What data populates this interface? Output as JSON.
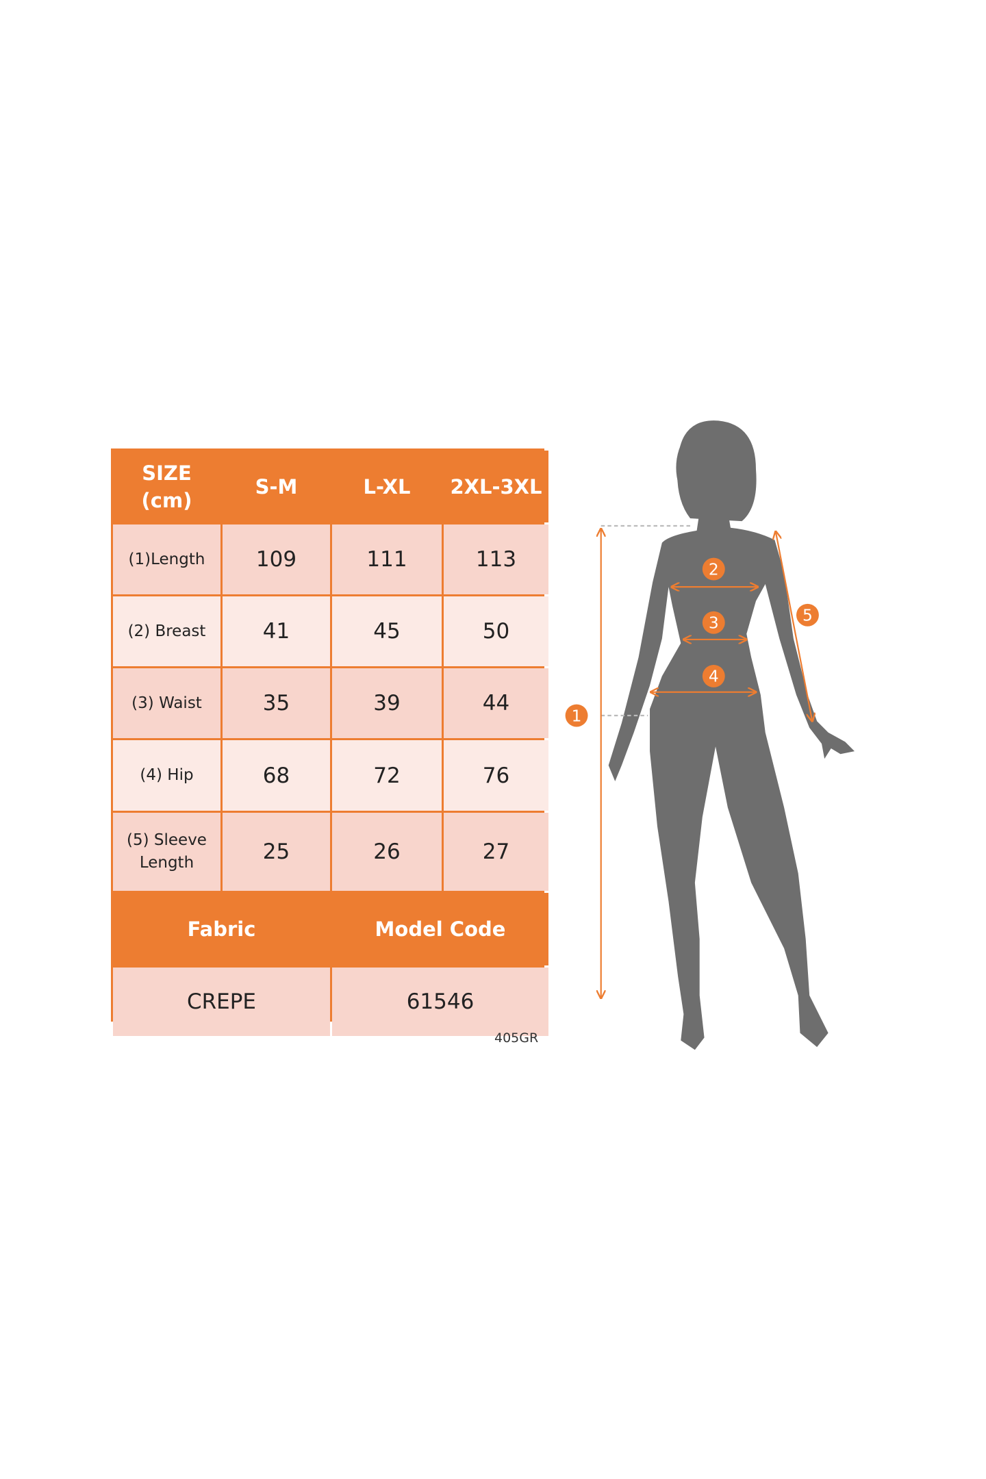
{
  "table": {
    "header": [
      "SIZE\n(cm)",
      "S-M",
      "L-XL",
      "2XL-3XL"
    ],
    "header_size_line1": "SIZE",
    "header_size_line2": "(cm)",
    "rows": [
      {
        "label": "(1)Length",
        "values": [
          "109",
          "111",
          "113"
        ]
      },
      {
        "label": "(2) Breast",
        "values": [
          "41",
          "45",
          "50"
        ]
      },
      {
        "label": "(3) Waist",
        "values": [
          "35",
          "39",
          "44"
        ]
      },
      {
        "label": "(4) Hip",
        "values": [
          "68",
          "72",
          "76"
        ]
      },
      {
        "label_line1": "(5) Sleeve",
        "label_line2": "Length",
        "values": [
          "25",
          "26",
          "27"
        ]
      }
    ],
    "footer_headers": [
      "Fabric",
      "Model Code"
    ],
    "footer_values": [
      "CREPE",
      "61546"
    ]
  },
  "code_note": "405GR",
  "figure": {
    "markers": [
      "1",
      "2",
      "3",
      "4",
      "5"
    ]
  },
  "colors": {
    "accent": "#ED7D31",
    "cell_dark": "#F8D5CC",
    "cell_light": "#FCEAE5",
    "silhouette": "#6E6E6E"
  }
}
